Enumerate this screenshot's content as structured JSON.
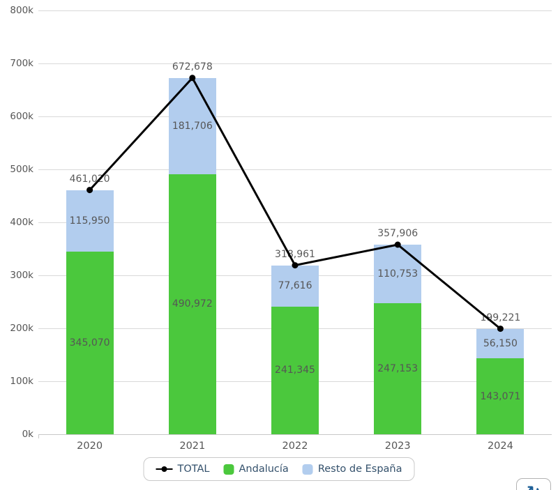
{
  "chart_data": {
    "type": "bar",
    "subtype": "stacked-columns-with-total-line",
    "categories": [
      "2020",
      "2021",
      "2022",
      "2023",
      "2024"
    ],
    "series": [
      {
        "name": "Andalucía",
        "role": "column",
        "color": "#4bc83d",
        "values": [
          345070,
          490972,
          241345,
          247153,
          143071
        ]
      },
      {
        "name": "Resto de España",
        "role": "column",
        "color": "#b2cdee",
        "values": [
          115950,
          181706,
          77616,
          110753,
          56150
        ]
      },
      {
        "name": "TOTAL",
        "role": "line",
        "color": "#000000",
        "values": [
          461020,
          672678,
          318961,
          357906,
          199221
        ]
      }
    ],
    "data_labels": {
      "andalucia": [
        "345,070",
        "490,972",
        "241,345",
        "247,153",
        "143,071"
      ],
      "resto": [
        "115,950",
        "181,706",
        "77,616",
        "110,753",
        "56,150"
      ],
      "total": [
        "461,020",
        "672,678",
        "318,961",
        "357,906",
        "199,221"
      ]
    },
    "ylim": [
      0,
      800000
    ],
    "ytick_labels": [
      "0k",
      "100k",
      "200k",
      "300k",
      "400k",
      "500k",
      "600k",
      "700k",
      "800k"
    ],
    "grid": true,
    "legend_position": "bottom"
  },
  "icons": {
    "refresh": "↻"
  },
  "colors": {
    "grid": "#d9d9d9",
    "axis_line": "#c8c8c8",
    "axis_text": "#555555",
    "data_label_text": "#555555",
    "total_label_text": "#595959",
    "legend_text": "#33506b",
    "legend_border": "#c9c9c9",
    "refresh_icon": "#1e5f97"
  }
}
